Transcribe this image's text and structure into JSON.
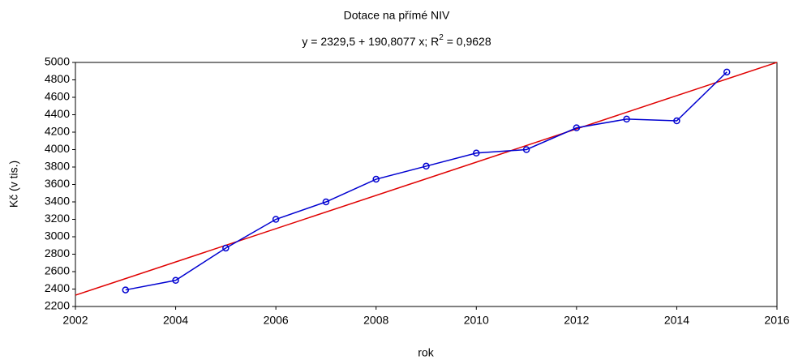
{
  "chart_data": {
    "type": "line",
    "title": "Dotace na přímé NIV",
    "subtitle": [
      "y = 2329,5 + 190,8077 x; R",
      "2",
      " = 0,9628"
    ],
    "x_label": "rok",
    "y_label": "Kč (v tis.)",
    "x": [
      2003,
      2004,
      2005,
      2006,
      2007,
      2008,
      2009,
      2010,
      2011,
      2012,
      2013,
      2014,
      2015
    ],
    "series": [
      {
        "color": "#0000d0",
        "values": [
          2390,
          2500,
          2870,
          3200,
          3400,
          3660,
          3810,
          3960,
          4000,
          4250,
          4350,
          4330,
          4890
        ]
      }
    ],
    "fit_line": {
      "color": "#e00000",
      "x": [
        2002,
        2016
      ],
      "values": [
        2329.5,
        5000.8
      ]
    },
    "xlim": [
      2002,
      2016
    ],
    "xticks": [
      2002,
      2004,
      2006,
      2008,
      2010,
      2012,
      2014,
      2016
    ],
    "ylim": [
      2200,
      5000
    ],
    "yticks": [
      2200,
      2400,
      2600,
      2800,
      3000,
      3200,
      3400,
      3600,
      3800,
      4000,
      4200,
      4400,
      4600,
      4800,
      5000
    ],
    "grid": false
  }
}
